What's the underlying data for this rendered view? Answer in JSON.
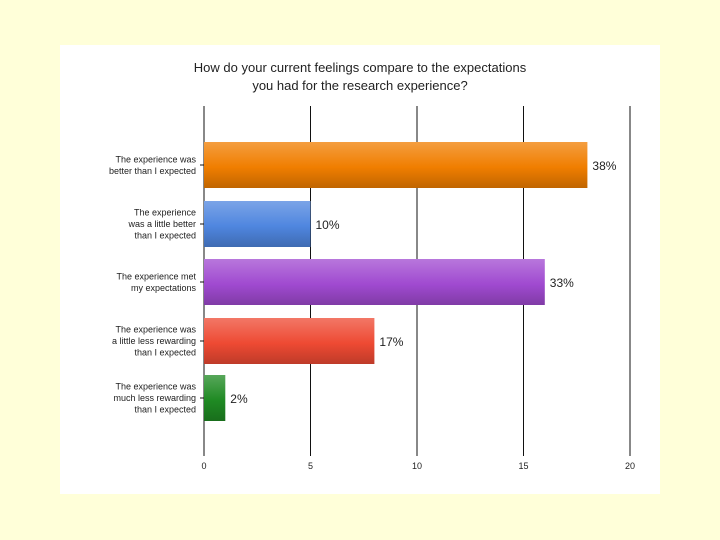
{
  "chart_data": {
    "type": "bar",
    "orientation": "horizontal",
    "title_lines": [
      "How do your current feelings compare to the expectations",
      "you had for the research experience?"
    ],
    "categories": [
      [
        "The experience was",
        "better than I expected"
      ],
      [
        "The experience",
        "was a little better",
        "than I expected"
      ],
      [
        "The experience met",
        "my expectations"
      ],
      [
        "The experience was",
        "a little less rewarding",
        "than I expected"
      ],
      [
        "The experience was",
        "much less rewarding",
        "than I expected"
      ]
    ],
    "values": [
      18,
      5,
      16,
      8,
      1
    ],
    "data_labels": [
      "38%",
      "10%",
      "33%",
      "17%",
      "2%"
    ],
    "colors": [
      "#f07e00",
      "#4f86df",
      "#a04ad0",
      "#ee4a33",
      "#1f8a23"
    ],
    "xlim": [
      0,
      20
    ],
    "xticks": [
      0,
      5,
      10,
      15,
      20
    ],
    "grid": true,
    "xlabel": "",
    "ylabel": ""
  }
}
